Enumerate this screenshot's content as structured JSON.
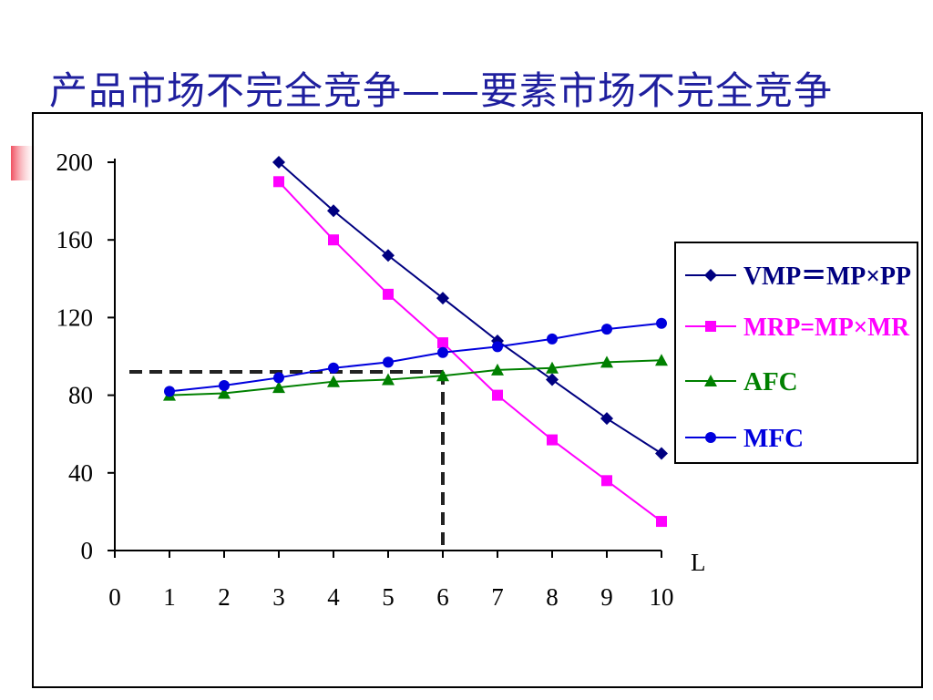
{
  "slide": {
    "title": "产品市场不完全竞争——要素市场不完全竞争"
  },
  "chart_data": {
    "type": "line",
    "title": "",
    "xlabel": "L",
    "ylabel": "",
    "x_ticks": [
      "0",
      "1",
      "2",
      "3",
      "4",
      "5",
      "6",
      "7",
      "8",
      "9",
      "10"
    ],
    "y_ticks": [
      "0",
      "40",
      "80",
      "120",
      "160",
      "200"
    ],
    "xlim": [
      0,
      10
    ],
    "ylim": [
      0,
      200
    ],
    "legend_position": "right",
    "series": [
      {
        "name": "VMP＝MP×PP",
        "color": "#000080",
        "marker": "diamond",
        "x": [
          3,
          4,
          5,
          6,
          7,
          8,
          9,
          10
        ],
        "y": [
          200,
          175,
          152,
          130,
          108,
          88,
          68,
          50
        ]
      },
      {
        "name": "MRP=MP×MR",
        "color": "#ff00ff",
        "marker": "square",
        "x": [
          3,
          4,
          5,
          6,
          7,
          8,
          9,
          10
        ],
        "y": [
          190,
          160,
          132,
          107,
          80,
          57,
          36,
          15
        ]
      },
      {
        "name": "AFC",
        "color": "#008000",
        "marker": "triangle",
        "x": [
          1,
          2,
          3,
          4,
          5,
          6,
          7,
          8,
          9,
          10
        ],
        "y": [
          80,
          81,
          84,
          87,
          88,
          90,
          93,
          94,
          97,
          98
        ]
      },
      {
        "name": "MFC",
        "color": "#0000dd",
        "marker": "circle",
        "x": [
          1,
          2,
          3,
          4,
          5,
          6,
          7,
          8,
          9,
          10
        ],
        "y": [
          82,
          85,
          89,
          94,
          97,
          102,
          105,
          109,
          114,
          117
        ]
      }
    ],
    "annotations": {
      "dashed_level_y": 92,
      "dashed_level_x": 6
    }
  }
}
